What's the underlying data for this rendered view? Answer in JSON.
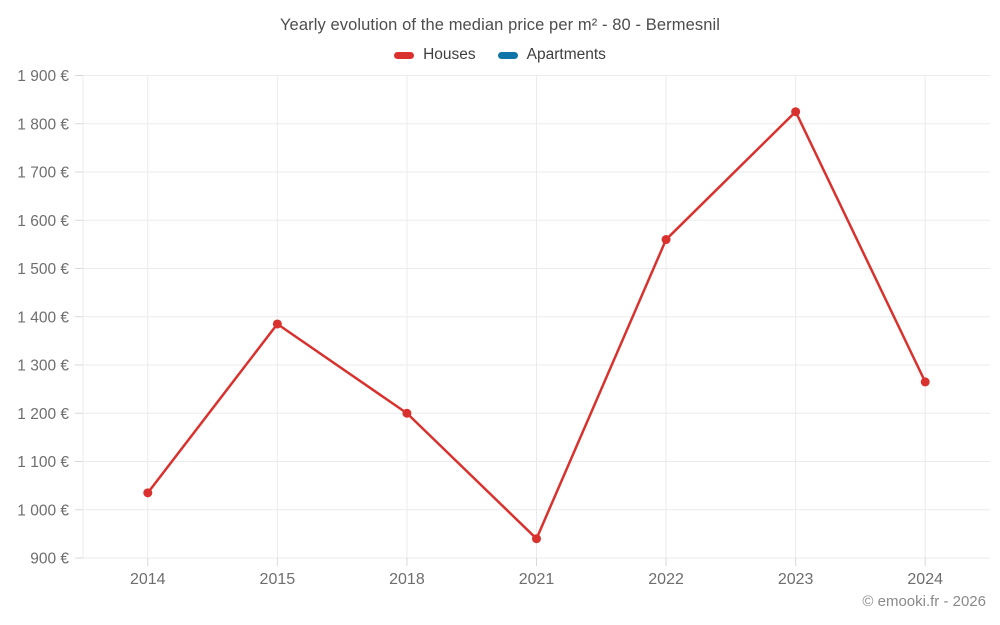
{
  "header": {
    "title": "Yearly evolution of the median price per m² - 80 - Bermesnil"
  },
  "legend": [
    {
      "label": "Houses",
      "color": "#d9322e"
    },
    {
      "label": "Apartments",
      "color": "#0f74a8"
    }
  ],
  "footer": {
    "credit": "© emooki.fr - 2026"
  },
  "chart_data": {
    "type": "line",
    "title": "Yearly evolution of the median price per m² - 80 - Bermesnil",
    "categories": [
      "2014",
      "2015",
      "2018",
      "2021",
      "2022",
      "2023",
      "2024"
    ],
    "series": [
      {
        "name": "Houses",
        "color": "#d9322e",
        "values": [
          1035,
          1385,
          1200,
          940,
          1560,
          1825,
          1265
        ]
      },
      {
        "name": "Apartments",
        "color": "#0f74a8",
        "values": []
      }
    ],
    "xlabel": "",
    "ylabel": "",
    "y_unit": "€",
    "ylim": [
      900,
      1900
    ],
    "ytick_step": 100,
    "ytick_labels": [
      "900 €",
      "1 000 €",
      "1 100 €",
      "1 200 €",
      "1 300 €",
      "1 400 €",
      "1 500 €",
      "1 600 €",
      "1 700 €",
      "1 800 €",
      "1 900 €"
    ],
    "grid": true,
    "legend_position": "top"
  },
  "colors": {
    "grid": "#ebebeb",
    "tick": "#d8d8d8",
    "axis_label": "#6e6e6e",
    "title_text": "#4d4d4d"
  }
}
